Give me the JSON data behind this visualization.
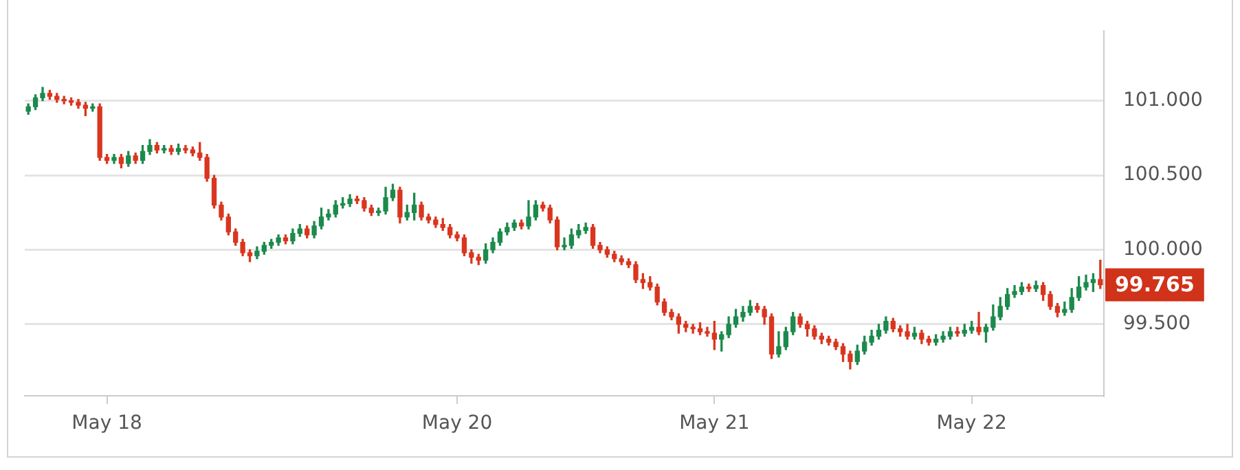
{
  "chart_data": {
    "type": "candlestick",
    "categories": [
      null,
      null,
      null,
      null,
      null,
      null,
      null,
      null,
      null,
      null,
      null,
      "May 18",
      null,
      null,
      null,
      null,
      null,
      null,
      null,
      null,
      null,
      null,
      null,
      null,
      null,
      null,
      null,
      null,
      null,
      null,
      null,
      null,
      null,
      null,
      null,
      null,
      null,
      null,
      null,
      null,
      null,
      null,
      null,
      null,
      null,
      null,
      null,
      null,
      null,
      null,
      null,
      null,
      null,
      null,
      null,
      null,
      null,
      null,
      null,
      null,
      "May 20",
      null,
      null,
      null,
      null,
      null,
      null,
      null,
      null,
      null,
      null,
      null,
      null,
      null,
      null,
      null,
      null,
      null,
      null,
      null,
      null,
      null,
      null,
      null,
      null,
      null,
      null,
      null,
      null,
      null,
      null,
      null,
      null,
      null,
      null,
      null,
      "May 21",
      null,
      null,
      null,
      null,
      null,
      null,
      null,
      null,
      null,
      null,
      null,
      null,
      null,
      null,
      null,
      null,
      null,
      null,
      null,
      null,
      null,
      null,
      null,
      null,
      null,
      null,
      null,
      null,
      null,
      null,
      null,
      null,
      null,
      null,
      null,
      "May 22",
      null,
      null,
      null,
      null,
      null,
      null,
      null,
      null,
      null,
      null,
      null,
      null,
      null,
      null,
      null,
      null,
      null,
      null
    ],
    "ohlc": [
      [
        100.93,
        100.98,
        100.91,
        100.96
      ],
      [
        100.96,
        101.04,
        100.94,
        101.02
      ],
      [
        101.02,
        101.09,
        101.0,
        101.05
      ],
      [
        101.05,
        101.07,
        101.01,
        101.03
      ],
      [
        101.03,
        101.05,
        100.99,
        101.01
      ],
      [
        101.01,
        101.03,
        100.98,
        101.0
      ],
      [
        101.0,
        101.02,
        100.97,
        100.99
      ],
      [
        100.99,
        101.01,
        100.95,
        100.97
      ],
      [
        100.97,
        100.99,
        100.9,
        100.95
      ],
      [
        100.95,
        100.98,
        100.93,
        100.96
      ],
      [
        100.96,
        100.98,
        100.6,
        100.62
      ],
      [
        100.62,
        100.64,
        100.58,
        100.6
      ],
      [
        100.6,
        100.64,
        100.58,
        100.62
      ],
      [
        100.62,
        100.64,
        100.55,
        100.58
      ],
      [
        100.58,
        100.66,
        100.56,
        100.63
      ],
      [
        100.63,
        100.65,
        100.58,
        100.6
      ],
      [
        100.6,
        100.7,
        100.58,
        100.66
      ],
      [
        100.66,
        100.74,
        100.64,
        100.7
      ],
      [
        100.7,
        100.72,
        100.65,
        100.67
      ],
      [
        100.67,
        100.7,
        100.65,
        100.68
      ],
      [
        100.68,
        100.7,
        100.64,
        100.66
      ],
      [
        100.66,
        100.71,
        100.64,
        100.68
      ],
      [
        100.68,
        100.7,
        100.65,
        100.67
      ],
      [
        100.67,
        100.69,
        100.63,
        100.65
      ],
      [
        100.65,
        100.72,
        100.6,
        100.62
      ],
      [
        100.62,
        100.64,
        100.46,
        100.48
      ],
      [
        100.48,
        100.5,
        100.28,
        100.3
      ],
      [
        100.3,
        100.32,
        100.2,
        100.22
      ],
      [
        100.22,
        100.24,
        100.1,
        100.12
      ],
      [
        100.12,
        100.14,
        100.03,
        100.05
      ],
      [
        100.05,
        100.07,
        99.96,
        99.98
      ],
      [
        99.98,
        100.0,
        99.92,
        99.96
      ],
      [
        99.96,
        100.02,
        99.94,
        99.99
      ],
      [
        99.99,
        100.05,
        99.97,
        100.03
      ],
      [
        100.03,
        100.07,
        100.01,
        100.05
      ],
      [
        100.05,
        100.1,
        100.03,
        100.08
      ],
      [
        100.08,
        100.1,
        100.04,
        100.06
      ],
      [
        100.06,
        100.14,
        100.04,
        100.11
      ],
      [
        100.11,
        100.17,
        100.09,
        100.14
      ],
      [
        100.14,
        100.16,
        100.08,
        100.1
      ],
      [
        100.1,
        100.19,
        100.08,
        100.16
      ],
      [
        100.16,
        100.28,
        100.14,
        100.22
      ],
      [
        100.22,
        100.27,
        100.2,
        100.24
      ],
      [
        100.24,
        100.33,
        100.22,
        100.3
      ],
      [
        100.3,
        100.35,
        100.28,
        100.31
      ],
      [
        100.31,
        100.37,
        100.29,
        100.34
      ],
      [
        100.34,
        100.36,
        100.31,
        100.33
      ],
      [
        100.33,
        100.35,
        100.26,
        100.28
      ],
      [
        100.28,
        100.3,
        100.23,
        100.25
      ],
      [
        100.25,
        100.28,
        100.23,
        100.26
      ],
      [
        100.26,
        100.42,
        100.24,
        100.35
      ],
      [
        100.35,
        100.44,
        100.33,
        100.4
      ],
      [
        100.4,
        100.42,
        100.18,
        100.22
      ],
      [
        100.22,
        100.3,
        100.2,
        100.25
      ],
      [
        100.25,
        100.38,
        100.2,
        100.3
      ],
      [
        100.3,
        100.32,
        100.2,
        100.22
      ],
      [
        100.22,
        100.24,
        100.18,
        100.2
      ],
      [
        100.2,
        100.22,
        100.15,
        100.17
      ],
      [
        100.17,
        100.21,
        100.13,
        100.15
      ],
      [
        100.15,
        100.17,
        100.08,
        100.1
      ],
      [
        100.1,
        100.12,
        100.06,
        100.08
      ],
      [
        100.08,
        100.1,
        99.96,
        99.98
      ],
      [
        99.98,
        100.0,
        99.91,
        99.95
      ],
      [
        99.95,
        99.97,
        99.9,
        99.93
      ],
      [
        99.93,
        100.04,
        99.91,
        100.0
      ],
      [
        100.0,
        100.08,
        99.98,
        100.05
      ],
      [
        100.05,
        100.14,
        100.03,
        100.12
      ],
      [
        100.12,
        100.18,
        100.1,
        100.15
      ],
      [
        100.15,
        100.2,
        100.13,
        100.18
      ],
      [
        100.18,
        100.2,
        100.14,
        100.16
      ],
      [
        100.16,
        100.33,
        100.14,
        100.22
      ],
      [
        100.22,
        100.33,
        100.2,
        100.3
      ],
      [
        100.3,
        100.32,
        100.26,
        100.28
      ],
      [
        100.28,
        100.3,
        100.18,
        100.2
      ],
      [
        100.2,
        100.22,
        100.0,
        100.02
      ],
      [
        100.02,
        100.08,
        100.0,
        100.03
      ],
      [
        100.03,
        100.14,
        100.01,
        100.1
      ],
      [
        100.1,
        100.17,
        100.08,
        100.13
      ],
      [
        100.13,
        100.18,
        100.11,
        100.15
      ],
      [
        100.15,
        100.17,
        100.01,
        100.03
      ],
      [
        100.03,
        100.05,
        99.98,
        100.0
      ],
      [
        100.0,
        100.02,
        99.95,
        99.97
      ],
      [
        99.97,
        99.99,
        99.92,
        99.94
      ],
      [
        99.94,
        99.96,
        99.9,
        99.92
      ],
      [
        99.92,
        99.94,
        99.88,
        99.9
      ],
      [
        99.9,
        99.92,
        99.78,
        99.8
      ],
      [
        99.8,
        99.84,
        99.74,
        99.78
      ],
      [
        99.78,
        99.82,
        99.73,
        99.75
      ],
      [
        99.75,
        99.77,
        99.63,
        99.65
      ],
      [
        99.65,
        99.67,
        99.56,
        99.58
      ],
      [
        99.58,
        99.6,
        99.53,
        99.55
      ],
      [
        99.55,
        99.57,
        99.44,
        99.5
      ],
      [
        99.5,
        99.52,
        99.45,
        99.48
      ],
      [
        99.48,
        99.5,
        99.44,
        99.47
      ],
      [
        99.47,
        99.51,
        99.43,
        99.45
      ],
      [
        99.45,
        99.48,
        99.42,
        99.44
      ],
      [
        99.44,
        99.52,
        99.33,
        99.4
      ],
      [
        99.4,
        99.45,
        99.32,
        99.43
      ],
      [
        99.43,
        99.55,
        99.41,
        99.5
      ],
      [
        99.5,
        99.6,
        99.48,
        99.55
      ],
      [
        99.55,
        99.62,
        99.52,
        99.58
      ],
      [
        99.58,
        99.66,
        99.56,
        99.62
      ],
      [
        99.62,
        99.64,
        99.58,
        99.6
      ],
      [
        99.6,
        99.62,
        99.5,
        99.55
      ],
      [
        99.55,
        99.57,
        99.27,
        99.3
      ],
      [
        99.3,
        99.45,
        99.28,
        99.35
      ],
      [
        99.35,
        99.48,
        99.33,
        99.45
      ],
      [
        99.45,
        99.58,
        99.43,
        99.55
      ],
      [
        99.55,
        99.57,
        99.48,
        99.5
      ],
      [
        99.5,
        99.52,
        99.42,
        99.47
      ],
      [
        99.47,
        99.49,
        99.4,
        99.42
      ],
      [
        99.42,
        99.44,
        99.37,
        99.4
      ],
      [
        99.4,
        99.42,
        99.36,
        99.38
      ],
      [
        99.38,
        99.4,
        99.33,
        99.35
      ],
      [
        99.35,
        99.37,
        99.25,
        99.3
      ],
      [
        99.3,
        99.32,
        99.2,
        99.25
      ],
      [
        99.25,
        99.36,
        99.23,
        99.32
      ],
      [
        99.32,
        99.42,
        99.3,
        99.38
      ],
      [
        99.38,
        99.46,
        99.36,
        99.42
      ],
      [
        99.42,
        99.5,
        99.4,
        99.46
      ],
      [
        99.46,
        99.55,
        99.44,
        99.52
      ],
      [
        99.52,
        99.54,
        99.45,
        99.47
      ],
      [
        99.47,
        99.49,
        99.42,
        99.45
      ],
      [
        99.45,
        99.5,
        99.4,
        99.42
      ],
      [
        99.42,
        99.48,
        99.4,
        99.44
      ],
      [
        99.44,
        99.46,
        99.37,
        99.4
      ],
      [
        99.4,
        99.42,
        99.36,
        99.38
      ],
      [
        99.38,
        99.43,
        99.36,
        99.4
      ],
      [
        99.4,
        99.45,
        99.38,
        99.42
      ],
      [
        99.42,
        99.48,
        99.4,
        99.45
      ],
      [
        99.45,
        99.48,
        99.42,
        99.44
      ],
      [
        99.44,
        99.5,
        99.42,
        99.46
      ],
      [
        99.46,
        99.52,
        99.44,
        99.48
      ],
      [
        99.48,
        99.58,
        99.43,
        99.45
      ],
      [
        99.45,
        99.5,
        99.38,
        99.48
      ],
      [
        99.48,
        99.63,
        99.46,
        99.55
      ],
      [
        99.55,
        99.68,
        99.53,
        99.62
      ],
      [
        99.62,
        99.74,
        99.6,
        99.7
      ],
      [
        99.7,
        99.76,
        99.68,
        99.72
      ],
      [
        99.72,
        99.78,
        99.7,
        99.75
      ],
      [
        99.75,
        99.77,
        99.72,
        99.74
      ],
      [
        99.74,
        99.79,
        99.72,
        99.76
      ],
      [
        99.76,
        99.78,
        99.66,
        99.7
      ],
      [
        99.7,
        99.72,
        99.6,
        99.62
      ],
      [
        99.62,
        99.64,
        99.55,
        99.58
      ],
      [
        99.58,
        99.65,
        99.56,
        99.6
      ],
      [
        99.6,
        99.74,
        99.58,
        99.68
      ],
      [
        99.68,
        99.82,
        99.66,
        99.75
      ],
      [
        99.75,
        99.83,
        99.73,
        99.78
      ],
      [
        99.78,
        99.84,
        99.72,
        99.8
      ],
      [
        99.8,
        99.93,
        99.74,
        99.765
      ]
    ],
    "ylim": [
      99.02,
      101.47
    ],
    "yticks": [
      {
        "value": 99.5,
        "label": "99.500"
      },
      {
        "value": 100,
        "label": "100.000"
      },
      {
        "value": 100.5,
        "label": "100.500"
      },
      {
        "value": 101,
        "label": "101.000"
      }
    ],
    "grid": "y",
    "legend": false,
    "annotations": [
      "99.765"
    ]
  }
}
